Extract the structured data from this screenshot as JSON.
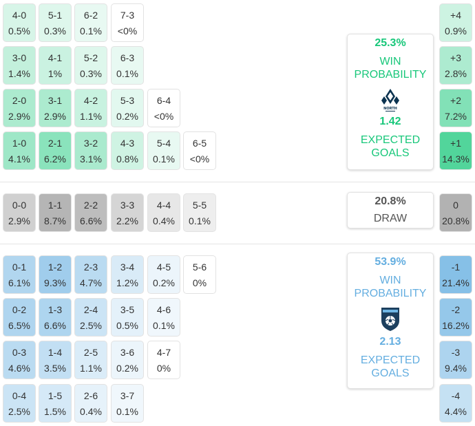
{
  "colors": {
    "home": "#18c77a",
    "away": "#64aee0",
    "draw_text": "#555555"
  },
  "home_block": {
    "rows": [
      [
        {
          "score": "4-0",
          "pct": "0.5%",
          "level": 0.5
        },
        {
          "score": "5-1",
          "pct": "0.3%",
          "level": 0.3
        },
        {
          "score": "6-2",
          "pct": "0.1%",
          "level": 0.1
        },
        {
          "score": "7-3",
          "pct": "<0%",
          "level": 0
        }
      ],
      [
        {
          "score": "3-0",
          "pct": "1.4%",
          "level": 1.4
        },
        {
          "score": "4-1",
          "pct": "1%",
          "level": 1
        },
        {
          "score": "5-2",
          "pct": "0.3%",
          "level": 0.3
        },
        {
          "score": "6-3",
          "pct": "0.1%",
          "level": 0.1
        }
      ],
      [
        {
          "score": "2-0",
          "pct": "2.9%",
          "level": 2.9
        },
        {
          "score": "3-1",
          "pct": "2.9%",
          "level": 2.9
        },
        {
          "score": "4-2",
          "pct": "1.1%",
          "level": 1.1
        },
        {
          "score": "5-3",
          "pct": "0.2%",
          "level": 0.2
        },
        {
          "score": "6-4",
          "pct": "<0%",
          "level": 0
        }
      ],
      [
        {
          "score": "1-0",
          "pct": "4.1%",
          "level": 4.1
        },
        {
          "score": "2-1",
          "pct": "6.2%",
          "level": 6.2
        },
        {
          "score": "3-2",
          "pct": "3.1%",
          "level": 3.1
        },
        {
          "score": "4-3",
          "pct": "0.8%",
          "level": 0.8
        },
        {
          "score": "5-4",
          "pct": "0.1%",
          "level": 0.1
        },
        {
          "score": "6-5",
          "pct": "<0%",
          "level": 0
        }
      ]
    ],
    "margins": [
      {
        "label": "+4",
        "pct": "0.9%",
        "level": 0.9
      },
      {
        "label": "+3",
        "pct": "2.8%",
        "level": 2.8
      },
      {
        "label": "+2",
        "pct": "7.2%",
        "level": 7.2
      },
      {
        "label": "+1",
        "pct": "14.3%",
        "level": 14.3
      }
    ],
    "summary": {
      "win_pct": "25.3%",
      "win_label_1": "WIN",
      "win_label_2": "PROBABILITY",
      "logo_text": "NORTH",
      "expected_goals": "1.42",
      "xg_label_1": "EXPECTED",
      "xg_label_2": "GOALS"
    }
  },
  "draw_block": {
    "cells": [
      {
        "score": "0-0",
        "pct": "2.9%",
        "level": 2.9
      },
      {
        "score": "1-1",
        "pct": "8.7%",
        "level": 8.7
      },
      {
        "score": "2-2",
        "pct": "6.6%",
        "level": 6.6
      },
      {
        "score": "3-3",
        "pct": "2.2%",
        "level": 2.2
      },
      {
        "score": "4-4",
        "pct": "0.4%",
        "level": 0.4
      },
      {
        "score": "5-5",
        "pct": "0.1%",
        "level": 0.1
      }
    ],
    "margin": {
      "label": "0",
      "pct": "20.8%",
      "level": 20.8
    },
    "summary": {
      "pct": "20.8%",
      "label": "DRAW"
    }
  },
  "away_block": {
    "rows": [
      [
        {
          "score": "0-1",
          "pct": "6.1%",
          "level": 6.1
        },
        {
          "score": "1-2",
          "pct": "9.3%",
          "level": 9.3
        },
        {
          "score": "2-3",
          "pct": "4.7%",
          "level": 4.7
        },
        {
          "score": "3-4",
          "pct": "1.2%",
          "level": 1.2
        },
        {
          "score": "4-5",
          "pct": "0.2%",
          "level": 0.2
        },
        {
          "score": "5-6",
          "pct": "0%",
          "level": 0
        }
      ],
      [
        {
          "score": "0-2",
          "pct": "6.5%",
          "level": 6.5
        },
        {
          "score": "1-3",
          "pct": "6.6%",
          "level": 6.6
        },
        {
          "score": "2-4",
          "pct": "2.5%",
          "level": 2.5
        },
        {
          "score": "3-5",
          "pct": "0.5%",
          "level": 0.5
        },
        {
          "score": "4-6",
          "pct": "0.1%",
          "level": 0.1
        }
      ],
      [
        {
          "score": "0-3",
          "pct": "4.6%",
          "level": 4.6
        },
        {
          "score": "1-4",
          "pct": "3.5%",
          "level": 3.5
        },
        {
          "score": "2-5",
          "pct": "1.1%",
          "level": 1.1
        },
        {
          "score": "3-6",
          "pct": "0.2%",
          "level": 0.2
        },
        {
          "score": "4-7",
          "pct": "0%",
          "level": 0
        }
      ],
      [
        {
          "score": "0-4",
          "pct": "2.5%",
          "level": 2.5
        },
        {
          "score": "1-5",
          "pct": "1.5%",
          "level": 1.5
        },
        {
          "score": "2-6",
          "pct": "0.4%",
          "level": 0.4
        },
        {
          "score": "3-7",
          "pct": "0.1%",
          "level": 0.1
        }
      ]
    ],
    "margins": [
      {
        "label": "-1",
        "pct": "21.4%",
        "level": 21.4
      },
      {
        "label": "-2",
        "pct": "16.2%",
        "level": 16.2
      },
      {
        "label": "-3",
        "pct": "9.4%",
        "level": 9.4
      },
      {
        "label": "-4",
        "pct": "4.4%",
        "level": 4.4
      }
    ],
    "summary": {
      "win_pct": "53.9%",
      "win_label_1": "WIN",
      "win_label_2": "PROBABILITY",
      "expected_goals": "2.13",
      "xg_label_1": "EXPECTED",
      "xg_label_2": "GOALS"
    }
  }
}
